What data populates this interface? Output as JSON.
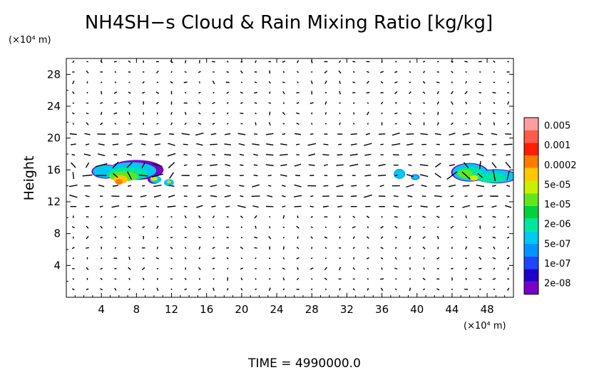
{
  "chart_data": {
    "type": "heatmap",
    "title": "NH4SH−s Cloud & Rain Mixing Ratio [kg/kg]",
    "ylabel": "Height",
    "yunit": "(×10⁴ m)",
    "xunit": "(×10⁴ m)",
    "xlim": [
      0,
      51
    ],
    "ylim": [
      0,
      30
    ],
    "xticks": [
      "4",
      "8",
      "12",
      "16",
      "20",
      "24",
      "28",
      "32",
      "36",
      "40",
      "44",
      "48"
    ],
    "yticks": [
      "4",
      "8",
      "12",
      "16",
      "20",
      "24",
      "28"
    ],
    "grid": false,
    "colorbar": {
      "labels": [
        "0.005",
        "0.001",
        "0.0002",
        "5e-05",
        "1e-05",
        "2e-06",
        "5e-07",
        "1e-07",
        "2e-08"
      ],
      "colors": [
        "#ff9e9e",
        "#ff5a4a",
        "#ff1e00",
        "#ff7a00",
        "#ffc800",
        "#c8f000",
        "#64e61e",
        "#00d23c",
        "#00e6a0",
        "#00c8f0",
        "#0096ff",
        "#1e46ff",
        "#1e00c8",
        "#7800c8"
      ]
    },
    "clouds": [
      {
        "x": [
          2.5,
          11.5
        ],
        "y": [
          13.5,
          17.5
        ],
        "level": "0.0002"
      },
      {
        "x": [
          37.2,
          38.5
        ],
        "y": [
          14.8,
          16.3
        ],
        "level": "2e-06"
      },
      {
        "x": [
          39.2,
          40.3
        ],
        "y": [
          14.5,
          15.8
        ],
        "level": "5e-07"
      },
      {
        "x": [
          43,
          51
        ],
        "y": [
          13.8,
          17.5
        ],
        "level": "5e-05"
      }
    ],
    "time_label": "TIME  =  4990000.0"
  }
}
